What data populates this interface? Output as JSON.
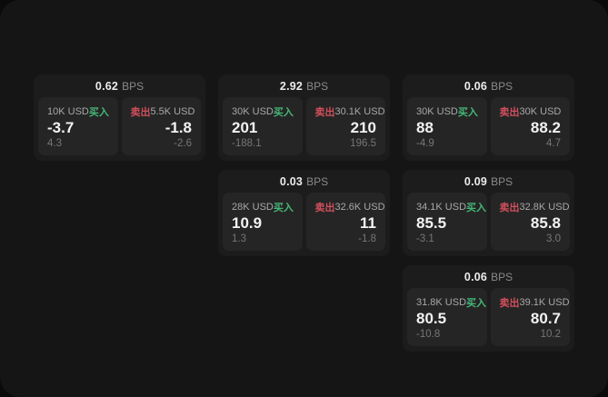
{
  "theme": {
    "outer_bg": "#0a0a0a",
    "surface_bg": "#151515",
    "card_bg": "#1c1c1c",
    "panel_bg": "#252525",
    "buy_color": "#45b778",
    "sell_color": "#d14f5c",
    "value_color": "#f2f2f2",
    "muted_color": "#8a8a8a"
  },
  "cards": [
    {
      "col": 1,
      "row": 1,
      "bps": "0.62",
      "bps_unit": "BPS",
      "buy": {
        "amount": "10K USD",
        "side": "买入",
        "value": "-3.7",
        "sub": "4.3"
      },
      "sell": {
        "side": "卖出",
        "amount": "5.5K USD",
        "value": "-1.8",
        "sub": "-2.6"
      }
    },
    {
      "col": 2,
      "row": 1,
      "bps": "2.92",
      "bps_unit": "BPS",
      "buy": {
        "amount": "30K USD",
        "side": "买入",
        "value": "201",
        "sub": "-188.1"
      },
      "sell": {
        "side": "卖出",
        "amount": "30.1K USD",
        "value": "210",
        "sub": "196.5"
      }
    },
    {
      "col": 3,
      "row": 1,
      "bps": "0.06",
      "bps_unit": "BPS",
      "buy": {
        "amount": "30K USD",
        "side": "买入",
        "value": "88",
        "sub": "-4.9"
      },
      "sell": {
        "side": "卖出",
        "amount": "30K USD",
        "value": "88.2",
        "sub": "4.7"
      }
    },
    {
      "col": 2,
      "row": 2,
      "bps": "0.03",
      "bps_unit": "BPS",
      "buy": {
        "amount": "28K USD",
        "side": "买入",
        "value": "10.9",
        "sub": "1.3"
      },
      "sell": {
        "side": "卖出",
        "amount": "32.6K USD",
        "value": "11",
        "sub": "-1.8"
      }
    },
    {
      "col": 3,
      "row": 2,
      "bps": "0.09",
      "bps_unit": "BPS",
      "buy": {
        "amount": "34.1K USD",
        "side": "买入",
        "value": "85.5",
        "sub": "-3.1"
      },
      "sell": {
        "side": "卖出",
        "amount": "32.8K USD",
        "value": "85.8",
        "sub": "3.0"
      }
    },
    {
      "col": 3,
      "row": 3,
      "bps": "0.06",
      "bps_unit": "BPS",
      "buy": {
        "amount": "31.8K USD",
        "side": "买入",
        "value": "80.5",
        "sub": "-10.8"
      },
      "sell": {
        "side": "卖出",
        "amount": "39.1K USD",
        "value": "80.7",
        "sub": "10.2"
      }
    }
  ]
}
